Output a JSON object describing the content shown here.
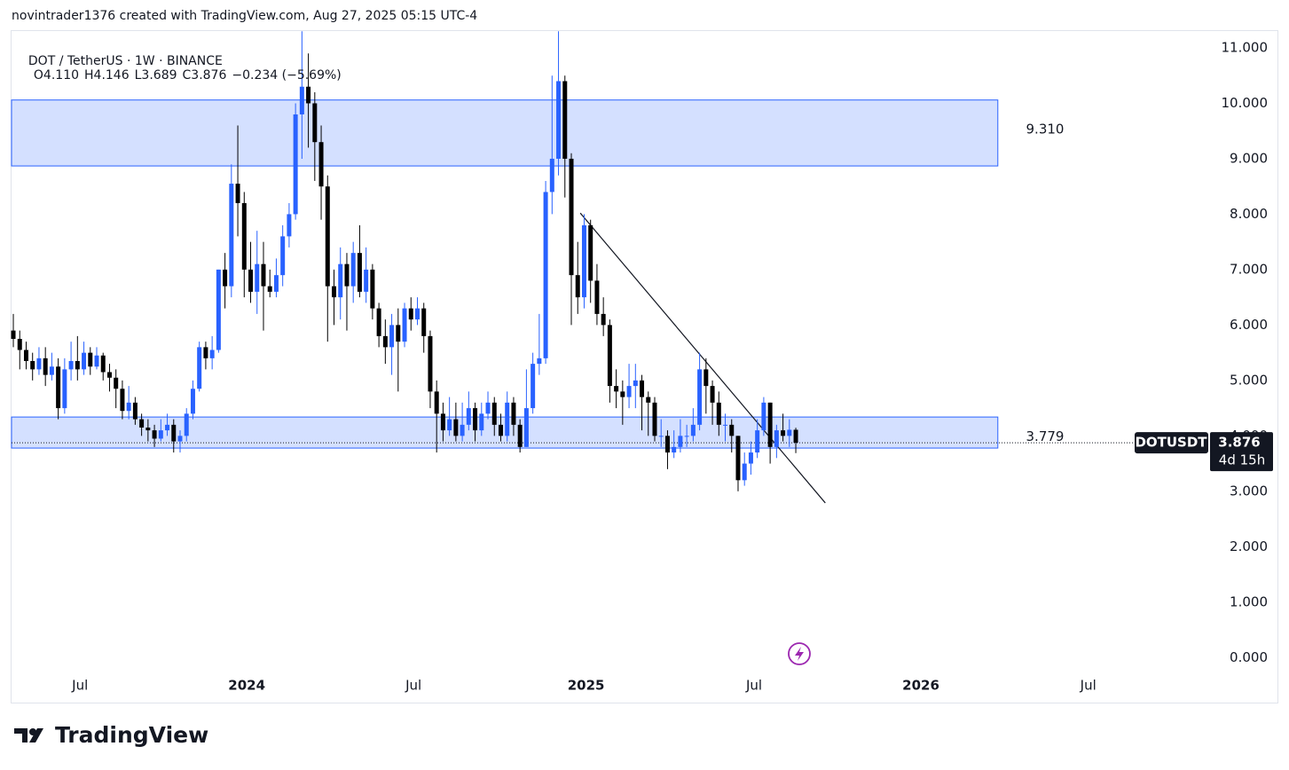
{
  "header": "novintrader1376 created with TradingView.com, Aug 27, 2025 05:15 UTC-4",
  "footer": {
    "logo": "TradingView"
  },
  "chart_data": {
    "type": "candlestick",
    "title": "DOT / TetherUS · 1W · BINANCE",
    "ohlc_legend": [
      "O4.110",
      "H4.146",
      "L3.689",
      "C3.876",
      "−0.234 (−5.69%)"
    ],
    "up_color": "#2962ff",
    "down_color": "#000000",
    "ohlc": [
      [
        5.9,
        6.2,
        5.6,
        5.75
      ],
      [
        5.75,
        5.9,
        5.2,
        5.55
      ],
      [
        5.55,
        5.7,
        5.2,
        5.35
      ],
      [
        5.35,
        5.5,
        5.0,
        5.2
      ],
      [
        5.2,
        5.6,
        5.1,
        5.4
      ],
      [
        5.4,
        5.6,
        4.9,
        5.1
      ],
      [
        5.1,
        5.5,
        5.0,
        5.25
      ],
      [
        5.25,
        5.4,
        4.3,
        4.5
      ],
      [
        4.5,
        5.4,
        4.4,
        5.2
      ],
      [
        5.2,
        5.7,
        5.0,
        5.35
      ],
      [
        5.35,
        5.8,
        5.0,
        5.2
      ],
      [
        5.2,
        5.7,
        5.1,
        5.5
      ],
      [
        5.5,
        5.6,
        5.1,
        5.25
      ],
      [
        5.25,
        5.6,
        5.2,
        5.45
      ],
      [
        5.45,
        5.5,
        5.0,
        5.15
      ],
      [
        5.15,
        5.3,
        4.8,
        5.05
      ],
      [
        5.05,
        5.2,
        4.5,
        4.85
      ],
      [
        4.85,
        5.0,
        4.3,
        4.45
      ],
      [
        4.45,
        4.9,
        4.3,
        4.6
      ],
      [
        4.6,
        4.7,
        4.2,
        4.3
      ],
      [
        4.3,
        4.4,
        4.0,
        4.15
      ],
      [
        4.15,
        4.3,
        3.9,
        4.1
      ],
      [
        4.1,
        4.2,
        3.8,
        3.95
      ],
      [
        3.95,
        4.3,
        3.9,
        4.1
      ],
      [
        4.1,
        4.4,
        4.0,
        4.2
      ],
      [
        4.2,
        4.3,
        3.7,
        3.9
      ],
      [
        3.9,
        4.1,
        3.7,
        4.0
      ],
      [
        4.0,
        4.5,
        3.9,
        4.4
      ],
      [
        4.4,
        5.0,
        4.3,
        4.85
      ],
      [
        4.85,
        5.7,
        4.8,
        5.6
      ],
      [
        5.6,
        5.7,
        5.2,
        5.4
      ],
      [
        5.4,
        5.8,
        5.2,
        5.55
      ],
      [
        5.55,
        7.0,
        5.5,
        7.0
      ],
      [
        7.0,
        7.3,
        6.3,
        6.7
      ],
      [
        6.7,
        8.9,
        6.5,
        8.55
      ],
      [
        8.55,
        9.6,
        7.6,
        8.2
      ],
      [
        8.2,
        8.4,
        6.5,
        7.0
      ],
      [
        7.0,
        7.5,
        6.4,
        6.6
      ],
      [
        6.6,
        7.7,
        6.2,
        7.1
      ],
      [
        7.1,
        7.5,
        5.9,
        6.7
      ],
      [
        6.7,
        7.0,
        6.5,
        6.6
      ],
      [
        6.6,
        7.2,
        6.5,
        6.9
      ],
      [
        6.9,
        7.8,
        6.7,
        7.6
      ],
      [
        7.6,
        8.2,
        7.4,
        8.0
      ],
      [
        8.0,
        10.0,
        7.9,
        9.8
      ],
      [
        9.8,
        11.3,
        9.0,
        10.3
      ],
      [
        10.3,
        10.9,
        9.2,
        10.0
      ],
      [
        10.0,
        10.2,
        8.6,
        9.3
      ],
      [
        9.3,
        9.6,
        7.9,
        8.5
      ],
      [
        8.5,
        8.7,
        5.7,
        6.7
      ],
      [
        6.7,
        7.0,
        6.0,
        6.5
      ],
      [
        6.5,
        7.4,
        6.1,
        7.1
      ],
      [
        7.1,
        7.3,
        5.9,
        6.7
      ],
      [
        6.7,
        7.5,
        6.4,
        7.3
      ],
      [
        7.3,
        7.8,
        6.5,
        6.6
      ],
      [
        6.6,
        7.4,
        6.4,
        7.0
      ],
      [
        7.0,
        7.1,
        6.1,
        6.3
      ],
      [
        6.3,
        6.4,
        5.6,
        5.8
      ],
      [
        5.8,
        6.1,
        5.3,
        5.6
      ],
      [
        5.6,
        6.2,
        5.1,
        6.0
      ],
      [
        6.0,
        6.3,
        4.8,
        5.7
      ],
      [
        5.7,
        6.4,
        5.6,
        6.3
      ],
      [
        6.3,
        6.5,
        5.9,
        6.1
      ],
      [
        6.1,
        6.5,
        6.0,
        6.3
      ],
      [
        6.3,
        6.4,
        5.5,
        5.8
      ],
      [
        5.8,
        5.9,
        4.5,
        4.8
      ],
      [
        4.8,
        5.0,
        3.7,
        4.4
      ],
      [
        4.4,
        4.6,
        3.9,
        4.1
      ],
      [
        4.1,
        4.7,
        4.0,
        4.3
      ],
      [
        4.3,
        4.6,
        3.9,
        4.0
      ],
      [
        4.0,
        4.6,
        3.9,
        4.2
      ],
      [
        4.2,
        4.8,
        4.1,
        4.5
      ],
      [
        4.5,
        4.6,
        3.9,
        4.1
      ],
      [
        4.1,
        4.6,
        4.0,
        4.4
      ],
      [
        4.4,
        4.8,
        4.3,
        4.6
      ],
      [
        4.6,
        4.7,
        4.0,
        4.2
      ],
      [
        4.2,
        4.4,
        3.9,
        4.0
      ],
      [
        4.0,
        4.8,
        3.9,
        4.6
      ],
      [
        4.6,
        4.7,
        4.0,
        4.2
      ],
      [
        4.2,
        4.3,
        3.7,
        3.8
      ],
      [
        3.8,
        5.2,
        3.8,
        4.5
      ],
      [
        4.5,
        5.5,
        4.4,
        5.3
      ],
      [
        5.3,
        6.2,
        5.1,
        5.4
      ],
      [
        5.4,
        8.6,
        5.3,
        8.4
      ],
      [
        8.4,
        10.5,
        8.0,
        9.0
      ],
      [
        9.0,
        11.3,
        8.7,
        10.4
      ],
      [
        10.4,
        10.5,
        8.3,
        9.0
      ],
      [
        9.0,
        9.1,
        6.0,
        6.9
      ],
      [
        6.9,
        7.5,
        6.2,
        6.5
      ],
      [
        6.5,
        8.0,
        6.3,
        7.8
      ],
      [
        7.8,
        7.9,
        6.4,
        6.8
      ],
      [
        6.8,
        7.1,
        6.0,
        6.2
      ],
      [
        6.2,
        6.5,
        5.8,
        6.0
      ],
      [
        6.0,
        6.1,
        4.6,
        4.9
      ],
      [
        4.9,
        5.2,
        4.5,
        4.8
      ],
      [
        4.8,
        5.0,
        4.2,
        4.7
      ],
      [
        4.7,
        5.3,
        4.5,
        4.9
      ],
      [
        4.9,
        5.3,
        4.5,
        5.0
      ],
      [
        5.0,
        5.1,
        4.1,
        4.7
      ],
      [
        4.7,
        4.8,
        4.0,
        4.6
      ],
      [
        4.6,
        4.7,
        3.9,
        4.0
      ],
      [
        4.0,
        4.3,
        3.8,
        4.0
      ],
      [
        4.0,
        4.1,
        3.4,
        3.7
      ],
      [
        3.7,
        4.1,
        3.6,
        3.8
      ],
      [
        3.8,
        4.3,
        3.7,
        4.0
      ],
      [
        4.0,
        4.2,
        3.8,
        4.0
      ],
      [
        4.0,
        4.5,
        3.9,
        4.2
      ],
      [
        4.2,
        5.5,
        4.1,
        5.2
      ],
      [
        5.2,
        5.4,
        4.4,
        4.9
      ],
      [
        4.9,
        5.0,
        4.2,
        4.6
      ],
      [
        4.6,
        4.8,
        4.0,
        4.2
      ],
      [
        4.2,
        4.4,
        3.9,
        4.2
      ],
      [
        4.2,
        4.3,
        3.7,
        4.0
      ],
      [
        4.0,
        4.0,
        3.0,
        3.2
      ],
      [
        3.2,
        3.7,
        3.1,
        3.5
      ],
      [
        3.5,
        3.9,
        3.3,
        3.7
      ],
      [
        3.7,
        4.3,
        3.6,
        4.1
      ],
      [
        4.1,
        4.7,
        4.0,
        4.6
      ],
      [
        4.6,
        4.6,
        3.5,
        3.8
      ],
      [
        3.8,
        4.2,
        3.6,
        4.1
      ],
      [
        4.1,
        4.4,
        3.9,
        4.0
      ],
      [
        4.0,
        4.3,
        3.8,
        4.11
      ],
      [
        4.11,
        4.146,
        3.689,
        3.876
      ]
    ],
    "xlim": [
      -0.28,
      197.1
    ],
    "xticks": [
      {
        "value": 10.4,
        "label": "Jul"
      },
      {
        "value": 36.4,
        "label": "2024"
      },
      {
        "value": 62.4,
        "label": "Jul"
      },
      {
        "value": 89.3,
        "label": "2025"
      },
      {
        "value": 115.5,
        "label": "Jul"
      },
      {
        "value": 141.5,
        "label": "2026"
      },
      {
        "value": 167.6,
        "label": "Jul"
      }
    ],
    "ylim": [
      -0.3,
      11.32
    ],
    "yticks": [
      {
        "value": 0,
        "label": "0.000"
      },
      {
        "value": 1,
        "label": "1.000"
      },
      {
        "value": 2,
        "label": "2.000"
      },
      {
        "value": 3,
        "label": "3.000"
      },
      {
        "value": 4,
        "label": "4.000"
      },
      {
        "value": 5,
        "label": "5.000"
      },
      {
        "value": 6,
        "label": "6.000"
      },
      {
        "value": 7,
        "label": "7.000"
      },
      {
        "value": 8,
        "label": "8.000"
      },
      {
        "value": 9,
        "label": "9.000"
      },
      {
        "value": 10,
        "label": "10.000"
      },
      {
        "value": 11,
        "label": "11.000"
      }
    ],
    "zones": [
      {
        "x": [
          -0.28,
          153.5
        ],
        "top": 10.06,
        "bottom": 8.87,
        "label": "9.310"
      },
      {
        "x": [
          -0.28,
          153.5
        ],
        "top": 4.34,
        "bottom": 3.78,
        "label": "3.779"
      }
    ],
    "zone_color": "#2962ff",
    "trendline": {
      "x": [
        88.4,
        126.6
      ],
      "y": [
        8.02,
        2.79
      ]
    },
    "symbol": "DOTUSDT",
    "last_price": {
      "value": 3.876,
      "label": "3.876"
    },
    "countdown": "4d 15h"
  }
}
